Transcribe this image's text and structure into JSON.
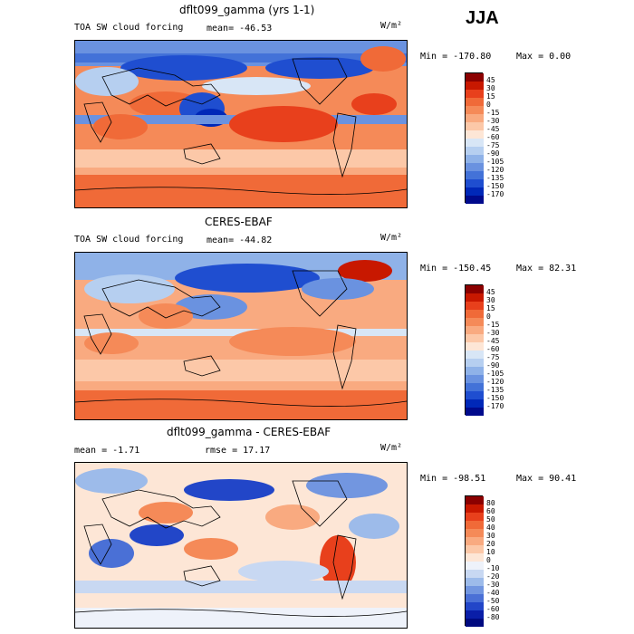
{
  "season": "JJA",
  "chart_data": [
    {
      "type": "heatmap",
      "title": "dflt099_gamma (yrs 1-1)",
      "variable": "TOA SW cloud forcing",
      "mean_text": "mean= -46.53",
      "units": "W/m²",
      "min_text": "Min = -170.80",
      "max_text": "Max =   0.00",
      "min": -170.8,
      "max": 0.0,
      "levels": [
        "45",
        "30",
        "15",
        "0",
        "-15",
        "-30",
        "-45",
        "-60",
        "-75",
        "-90",
        "-105",
        "-120",
        "-135",
        "-150",
        "-170"
      ],
      "colors": [
        "#8b0000",
        "#c81800",
        "#e8401c",
        "#f06a38",
        "#f58a58",
        "#f9aa80",
        "#fcc8a8",
        "#fde6d6",
        "#d8e6f6",
        "#b6cff0",
        "#8fb2e8",
        "#6a92e0",
        "#4372d8",
        "#1f4ed0",
        "#0028b8",
        "#000a8c"
      ]
    },
    {
      "type": "heatmap",
      "title": "CERES-EBAF",
      "variable": "TOA SW cloud forcing",
      "mean_text": "mean= -44.82",
      "units": "W/m²",
      "min_text": "Min = -150.45",
      "max_text": "Max =  82.31",
      "min": -150.45,
      "max": 82.31,
      "levels": [
        "45",
        "30",
        "15",
        "0",
        "-15",
        "-30",
        "-45",
        "-60",
        "-75",
        "-90",
        "-105",
        "-120",
        "-135",
        "-150",
        "-170"
      ],
      "colors": [
        "#8b0000",
        "#c81800",
        "#e8401c",
        "#f06a38",
        "#f58a58",
        "#f9aa80",
        "#fcc8a8",
        "#fde6d6",
        "#d8e6f6",
        "#b6cff0",
        "#8fb2e8",
        "#6a92e0",
        "#4372d8",
        "#1f4ed0",
        "#0028b8",
        "#000a8c"
      ]
    },
    {
      "type": "heatmap",
      "title": "dflt099_gamma - CERES-EBAF",
      "mean_text": "mean =   -1.71",
      "rmse_text": "rmse =  17.17",
      "units": "W/m²",
      "min_text": "Min = -98.51",
      "max_text": "Max =  90.41",
      "min": -98.51,
      "max": 90.41,
      "levels": [
        "80",
        "60",
        "50",
        "40",
        "30",
        "20",
        "10",
        "0",
        "-10",
        "-20",
        "-30",
        "-40",
        "-50",
        "-60",
        "-80"
      ],
      "colors": [
        "#8b0000",
        "#c81800",
        "#e8401c",
        "#f06a38",
        "#f58a58",
        "#f9aa80",
        "#fcc8a8",
        "#fde6d6",
        "#eef2fa",
        "#c8d8f2",
        "#9dbbea",
        "#7296e0",
        "#4a70d6",
        "#2246c8",
        "#0a1ea8",
        "#000a80"
      ]
    }
  ]
}
